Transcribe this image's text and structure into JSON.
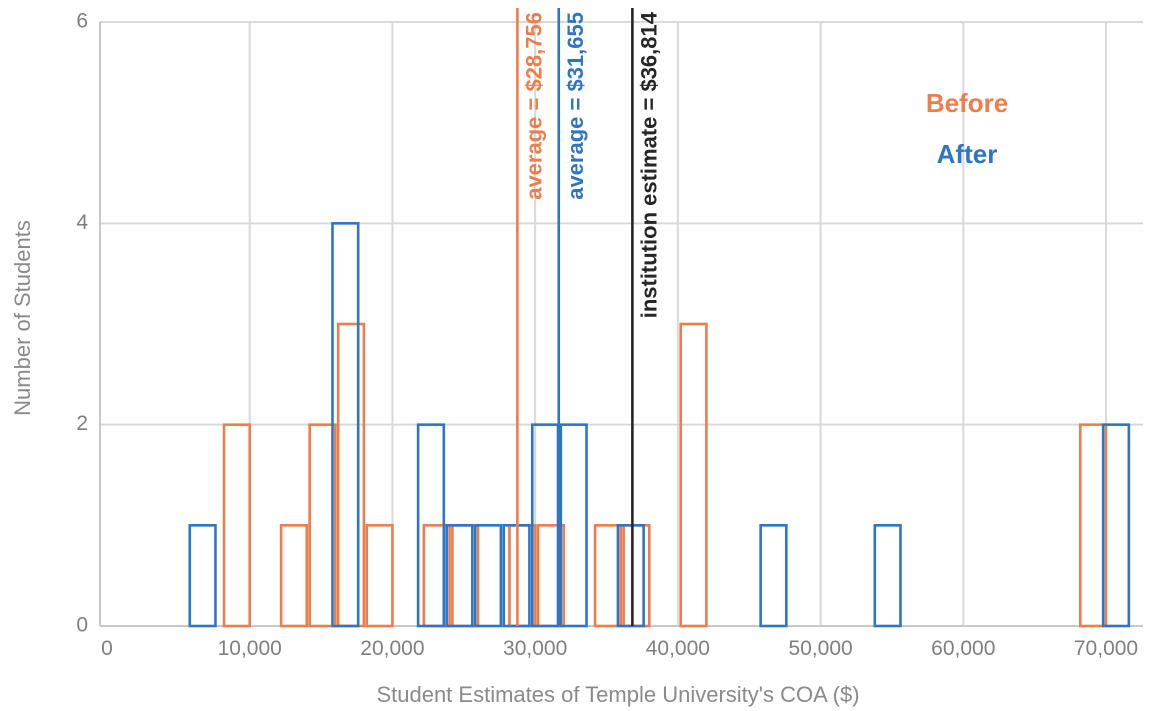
{
  "chart_data": {
    "type": "histogram",
    "xlabel": "Student Estimates of Temple University's COA ($)",
    "ylabel": "Number of Students",
    "xlim": [
      0,
      72000
    ],
    "ylim": [
      0,
      6
    ],
    "x_ticks": [
      0,
      10000,
      20000,
      30000,
      40000,
      50000,
      60000,
      70000
    ],
    "x_tick_labels": [
      "0",
      "10,000",
      "20,000",
      "30,000",
      "40,000",
      "50,000",
      "60,000",
      "70,000"
    ],
    "y_ticks": [
      0,
      2,
      4,
      6
    ],
    "y_tick_labels": [
      "0",
      "2",
      "4",
      "6"
    ],
    "grid": true,
    "legend_position": "top-right",
    "series": [
      {
        "name": "Before",
        "color": "#ed7d4a",
        "bins": [
          {
            "x0": 8200,
            "x1": 10000,
            "count": 2
          },
          {
            "x0": 12200,
            "x1": 14000,
            "count": 1
          },
          {
            "x0": 14200,
            "x1": 16000,
            "count": 2
          },
          {
            "x0": 16200,
            "x1": 18000,
            "count": 3
          },
          {
            "x0": 18200,
            "x1": 20000,
            "count": 1
          },
          {
            "x0": 22200,
            "x1": 24000,
            "count": 1
          },
          {
            "x0": 24200,
            "x1": 26000,
            "count": 1
          },
          {
            "x0": 28200,
            "x1": 30000,
            "count": 1
          },
          {
            "x0": 30200,
            "x1": 32000,
            "count": 1
          },
          {
            "x0": 34200,
            "x1": 36000,
            "count": 1
          },
          {
            "x0": 36200,
            "x1": 38000,
            "count": 1
          },
          {
            "x0": 40200,
            "x1": 42000,
            "count": 3
          },
          {
            "x0": 68200,
            "x1": 70000,
            "count": 2
          }
        ]
      },
      {
        "name": "After",
        "color": "#2e75c4",
        "bins": [
          {
            "x0": 5800,
            "x1": 7600,
            "count": 1
          },
          {
            "x0": 15800,
            "x1": 17600,
            "count": 4
          },
          {
            "x0": 21800,
            "x1": 23600,
            "count": 2
          },
          {
            "x0": 23800,
            "x1": 25600,
            "count": 1
          },
          {
            "x0": 25800,
            "x1": 27600,
            "count": 1
          },
          {
            "x0": 27800,
            "x1": 29600,
            "count": 1
          },
          {
            "x0": 29800,
            "x1": 31600,
            "count": 2
          },
          {
            "x0": 31800,
            "x1": 33600,
            "count": 2
          },
          {
            "x0": 35800,
            "x1": 37600,
            "count": 1
          },
          {
            "x0": 45800,
            "x1": 47600,
            "count": 1
          },
          {
            "x0": 53800,
            "x1": 55600,
            "count": 1
          },
          {
            "x0": 69800,
            "x1": 71600,
            "count": 2
          }
        ]
      }
    ],
    "reference_lines": [
      {
        "x": 28756,
        "label": "average = $28,756",
        "color": "#ed7d4a"
      },
      {
        "x": 31655,
        "label": "average = $31,655",
        "color": "#2e75c4"
      },
      {
        "x": 36814,
        "label": "institution estimate = $36,814",
        "color": "#262626"
      }
    ],
    "legend": [
      {
        "label": "Before",
        "color": "#ed7d4a"
      },
      {
        "label": "After",
        "color": "#2e75c4"
      }
    ]
  }
}
